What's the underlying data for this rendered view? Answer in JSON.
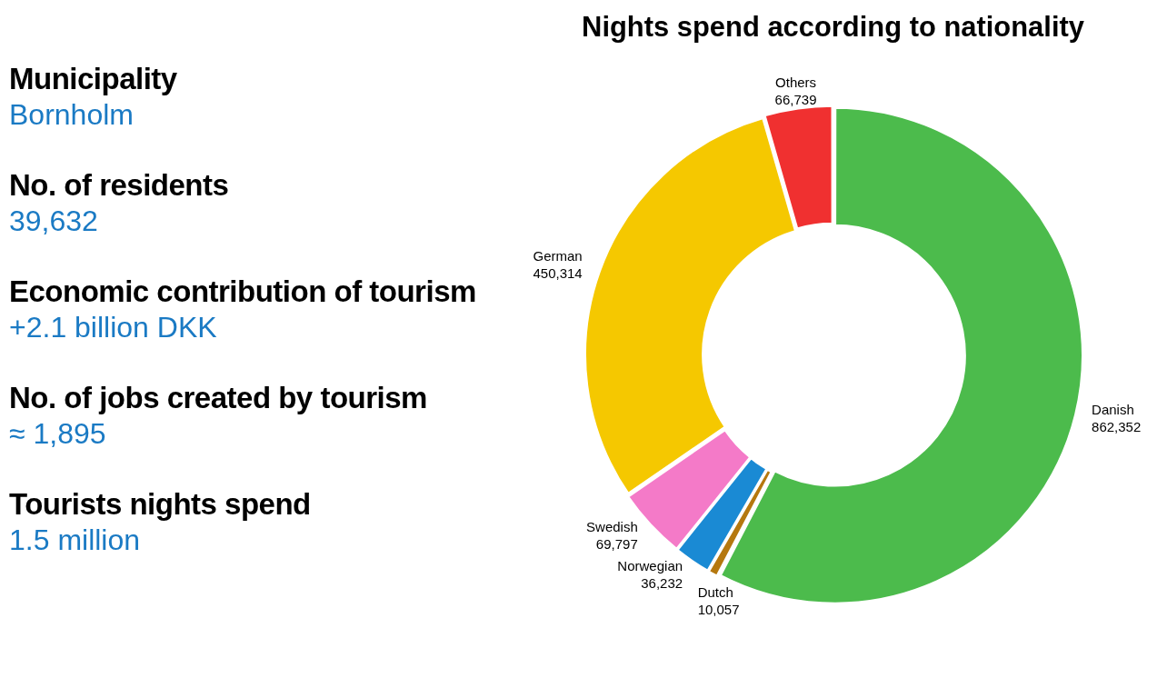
{
  "chart_data": [
    {
      "type": "other",
      "annotations": [
        "Municipality",
        "Bornholm",
        "No. of residents",
        "39,632",
        "Economic contribution of tourism",
        "+2.1 billion DKK",
        "No. of jobs created by tourism",
        "≈ 1,895",
        "Tourists nights spend",
        "1.5 million"
      ]
    },
    {
      "type": "donut",
      "title": "Nights spend according to nationality",
      "categories": [
        "Danish",
        "Dutch",
        "Norwegian",
        "Swedish",
        "German",
        "Others"
      ],
      "values": [
        862352,
        10057,
        36232,
        69797,
        450314,
        66739
      ],
      "colors": [
        "#4cbb4c",
        "#b5780f",
        "#1a8ad4",
        "#f47ac8",
        "#f5c800",
        "#f03030"
      ],
      "value_labels": [
        "862,352",
        "10,057",
        "36,232",
        "69,797",
        "450,314",
        "66,739"
      ]
    }
  ]
}
